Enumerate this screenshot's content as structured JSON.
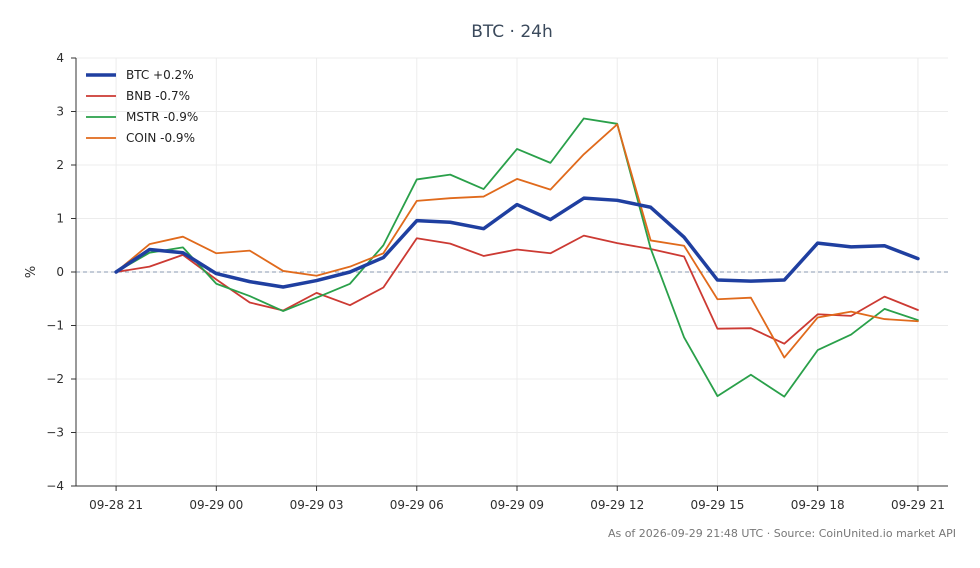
{
  "chart_data": {
    "type": "line",
    "title": "BTC · 24h",
    "ylabel": "%",
    "xlabel": "",
    "ylim": [
      -4,
      4
    ],
    "yticks": [
      4,
      3,
      2,
      1,
      0,
      -1,
      -2,
      -3,
      -4
    ],
    "ytick_labels": [
      "4",
      "3",
      "2",
      "1",
      "0",
      "−1",
      "−2",
      "−3",
      "−4"
    ],
    "x_start": "2026-09-28 21:00",
    "x_step_hours": 1,
    "xticks": [
      0,
      3,
      6,
      9,
      12,
      15,
      18,
      21,
      24
    ],
    "xtick_labels": [
      "09-28 21",
      "09-29 00",
      "09-29 03",
      "09-29 06",
      "09-29 09",
      "09-29 12",
      "09-29 15",
      "09-29 18",
      "09-29 21"
    ],
    "xlim": [
      -1.2,
      24.9
    ],
    "grid": true,
    "zero_line": true,
    "legend_position": "top-left",
    "series": [
      {
        "name": "BTC +0.2%",
        "color": "#1f3fa0",
        "width": 3.5,
        "values": [
          0,
          0.42,
          0.36,
          -0.03,
          -0.18,
          -0.28,
          -0.16,
          0.0,
          0.27,
          0.96,
          0.93,
          0.81,
          1.26,
          0.98,
          1.38,
          1.34,
          1.21,
          0.65,
          -0.15,
          -0.17,
          -0.15,
          0.54,
          0.47,
          0.49,
          0.25
        ]
      },
      {
        "name": "BNB -0.7%",
        "color": "#cc3a33",
        "width": 1.8,
        "values": [
          0,
          0.1,
          0.32,
          -0.14,
          -0.57,
          -0.72,
          -0.39,
          -0.62,
          -0.29,
          0.63,
          0.53,
          0.3,
          0.42,
          0.35,
          0.68,
          0.54,
          0.43,
          0.29,
          -1.06,
          -1.05,
          -1.34,
          -0.79,
          -0.82,
          -0.46,
          -0.71
        ]
      },
      {
        "name": "MSTR -0.9%",
        "color": "#2aa04a",
        "width": 1.8,
        "values": [
          0,
          0.36,
          0.46,
          -0.22,
          -0.45,
          -0.73,
          -0.48,
          -0.22,
          0.5,
          1.73,
          1.82,
          1.55,
          2.3,
          2.04,
          2.87,
          2.77,
          0.44,
          -1.22,
          -2.32,
          -1.92,
          -2.33,
          -1.46,
          -1.17,
          -0.69,
          -0.9
        ]
      },
      {
        "name": "COIN -0.9%",
        "color": "#e06a1c",
        "width": 1.8,
        "values": [
          0,
          0.52,
          0.66,
          0.35,
          0.4,
          0.02,
          -0.07,
          0.1,
          0.35,
          1.33,
          1.38,
          1.41,
          1.74,
          1.54,
          2.2,
          2.76,
          0.59,
          0.49,
          -0.51,
          -0.48,
          -1.6,
          -0.85,
          -0.74,
          -0.88,
          -0.92
        ]
      }
    ],
    "footer": "As of 2026-09-29 21:48 UTC · Source: CoinUnited.io market API"
  }
}
